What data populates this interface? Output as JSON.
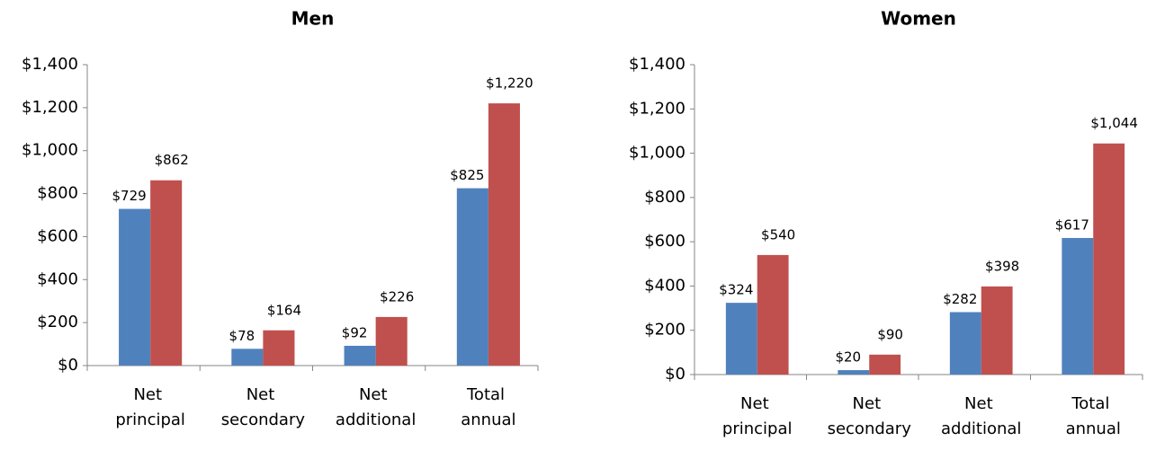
{
  "chart_data": [
    {
      "type": "bar",
      "title": "Men",
      "categories": [
        "Net principal",
        "Net secondary",
        "Net additional",
        "Total annual"
      ],
      "series": [
        {
          "color": "#4f81bd",
          "values": [
            729,
            78,
            92,
            825
          ],
          "value_labels": [
            "$729",
            "$78",
            "$92",
            "$825"
          ]
        },
        {
          "color": "#c0504d",
          "values": [
            862,
            164,
            226,
            1220
          ],
          "value_labels": [
            "$862",
            "$164",
            "$226",
            "$1,220"
          ]
        }
      ],
      "ylim": [
        0,
        1400
      ],
      "yticks": [
        {
          "value": 0,
          "label": "$0"
        },
        {
          "value": 200,
          "label": "$200"
        },
        {
          "value": 400,
          "label": "$400"
        },
        {
          "value": 600,
          "label": "$600"
        },
        {
          "value": 800,
          "label": "$800"
        },
        {
          "value": 1000,
          "label": "$1,000"
        },
        {
          "value": 1200,
          "label": "$1,200"
        },
        {
          "value": 1400,
          "label": "$1,400"
        }
      ],
      "grid": false
    },
    {
      "type": "bar",
      "title": "Women",
      "categories": [
        "Net principal",
        "Net secondary",
        "Net additional",
        "Total annual"
      ],
      "series": [
        {
          "color": "#4f81bd",
          "values": [
            324,
            20,
            282,
            617
          ],
          "value_labels": [
            "$324",
            "$20",
            "$282",
            "$617"
          ]
        },
        {
          "color": "#c0504d",
          "values": [
            540,
            90,
            398,
            1044
          ],
          "value_labels": [
            "$540",
            "$90",
            "$398",
            "$1,044"
          ]
        }
      ],
      "ylim": [
        0,
        1400
      ],
      "yticks": [
        {
          "value": 0,
          "label": "$0"
        },
        {
          "value": 200,
          "label": "$200"
        },
        {
          "value": 400,
          "label": "$400"
        },
        {
          "value": 600,
          "label": "$600"
        },
        {
          "value": 800,
          "label": "$800"
        },
        {
          "value": 1000,
          "label": "$1,000"
        },
        {
          "value": 1200,
          "label": "$1,200"
        },
        {
          "value": 1400,
          "label": "$1,400"
        }
      ],
      "grid": false
    }
  ]
}
